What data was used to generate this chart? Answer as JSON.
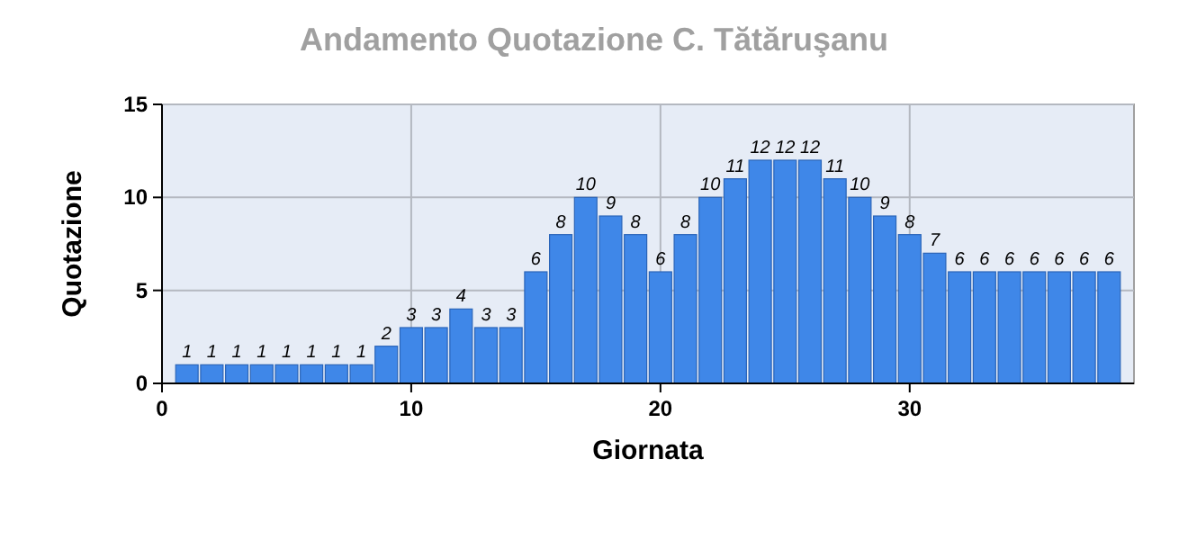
{
  "chart_data": {
    "type": "bar",
    "title": "Andamento Quotazione C. Tătăruşanu",
    "xlabel": "Giornata",
    "ylabel": "Quotazione",
    "x": [
      1,
      2,
      3,
      4,
      5,
      6,
      7,
      8,
      9,
      10,
      11,
      12,
      13,
      14,
      15,
      16,
      17,
      18,
      19,
      20,
      21,
      22,
      23,
      24,
      25,
      26,
      27,
      28,
      29,
      30,
      31,
      32,
      33,
      34,
      35,
      36,
      37,
      38
    ],
    "values": [
      1,
      1,
      1,
      1,
      1,
      1,
      1,
      1,
      2,
      3,
      3,
      4,
      3,
      3,
      6,
      8,
      10,
      9,
      8,
      6,
      8,
      10,
      11,
      12,
      12,
      12,
      11,
      10,
      9,
      8,
      7,
      6,
      6,
      6,
      6,
      6,
      6,
      6
    ],
    "color": "#3f87e8",
    "xlim": [
      0,
      39
    ],
    "xticks": [
      0,
      10,
      20,
      30
    ],
    "ylim": [
      0,
      15
    ],
    "yticks": [
      0,
      5,
      10,
      15
    ],
    "grid": true,
    "data_labels": true
  }
}
